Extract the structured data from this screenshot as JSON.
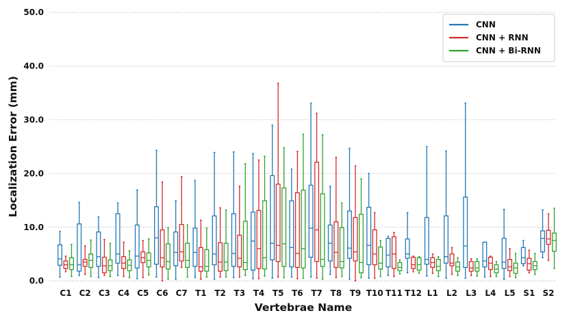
{
  "chart_data": {
    "type": "boxplot",
    "title": "",
    "xlabel": "Vertebrae Name",
    "ylabel": "Localization Error (mm)",
    "ylim": [
      0,
      50
    ],
    "yticks": [
      "0.0",
      "10.0",
      "20.0",
      "30.0",
      "40.0",
      "50.0"
    ],
    "grid": "horizontal dotted",
    "legend_position": "top-right",
    "categories": [
      "C1",
      "C2",
      "C3",
      "C4",
      "C5",
      "C6",
      "C7",
      "T1",
      "T2",
      "T3",
      "T4",
      "T5",
      "T6",
      "T7",
      "T8",
      "T9",
      "T10",
      "T11",
      "T12",
      "L1",
      "L2",
      "L3",
      "L4",
      "L5",
      "S1",
      "S2"
    ],
    "series": [
      {
        "name": "CNN",
        "color": "#1f77b4",
        "boxes": [
          {
            "min": 0.7,
            "q1": 2.9,
            "median": 4.1,
            "q3": 6.7,
            "max": 9.2
          },
          {
            "min": 1.0,
            "q1": 1.8,
            "median": 3.0,
            "q3": 10.6,
            "max": 14.6
          },
          {
            "min": 0.6,
            "q1": 2.7,
            "median": 4.5,
            "q3": 9.1,
            "max": 11.9
          },
          {
            "min": 1.0,
            "q1": 3.3,
            "median": 5.0,
            "q3": 12.5,
            "max": 14.5
          },
          {
            "min": 0.4,
            "q1": 2.4,
            "median": 4.6,
            "q3": 10.4,
            "max": 16.9
          },
          {
            "min": 0.7,
            "q1": 3.1,
            "median": 8.0,
            "q3": 13.8,
            "max": 24.3
          },
          {
            "min": 0.3,
            "q1": 2.8,
            "median": 5.3,
            "q3": 9.1,
            "max": 14.9
          },
          {
            "min": 0.6,
            "q1": 2.7,
            "median": 5.3,
            "q3": 9.8,
            "max": 18.7
          },
          {
            "min": 0.3,
            "q1": 3.0,
            "median": 5.0,
            "q3": 12.1,
            "max": 23.9
          },
          {
            "min": 0.6,
            "q1": 2.7,
            "median": 5.1,
            "q3": 12.5,
            "max": 24.0
          },
          {
            "min": 0.4,
            "q1": 2.0,
            "median": 7.4,
            "q3": 12.8,
            "max": 23.7
          },
          {
            "min": 0.5,
            "q1": 3.9,
            "median": 7.0,
            "q3": 19.6,
            "max": 29.0
          },
          {
            "min": 0.7,
            "q1": 2.6,
            "median": 6.2,
            "q3": 14.9,
            "max": 20.8
          },
          {
            "min": 0.7,
            "q1": 4.4,
            "median": 9.8,
            "q3": 17.8,
            "max": 33.1
          },
          {
            "min": 1.2,
            "q1": 3.7,
            "median": 7.0,
            "q3": 10.4,
            "max": 17.6
          },
          {
            "min": 0.3,
            "q1": 4.2,
            "median": 6.1,
            "q3": 13.0,
            "max": 24.7
          },
          {
            "min": 0.5,
            "q1": 3.0,
            "median": 6.6,
            "q3": 13.7,
            "max": 20.0
          },
          {
            "min": 1.0,
            "q1": 2.6,
            "median": 4.8,
            "q3": 7.9,
            "max": 8.3
          },
          {
            "min": 1.5,
            "q1": 4.2,
            "median": 5.0,
            "q3": 7.8,
            "max": 12.7
          },
          {
            "min": 0.9,
            "q1": 3.1,
            "median": 4.0,
            "q3": 11.8,
            "max": 25.0
          },
          {
            "min": 0.5,
            "q1": 3.3,
            "median": 4.5,
            "q3": 12.1,
            "max": 24.2
          },
          {
            "min": 0.5,
            "q1": 2.5,
            "median": 6.5,
            "q3": 15.6,
            "max": 33.1
          },
          {
            "min": 0.7,
            "q1": 2.6,
            "median": 3.7,
            "q3": 7.2,
            "max": 7.2
          },
          {
            "min": 0.3,
            "q1": 2.3,
            "median": 3.5,
            "q3": 7.9,
            "max": 13.3
          },
          {
            "min": 2.8,
            "q1": 3.2,
            "median": 4.3,
            "q3": 6.2,
            "max": 7.5
          },
          {
            "min": 4.3,
            "q1": 5.4,
            "median": 7.9,
            "q3": 9.3,
            "max": 13.2
          }
        ]
      },
      {
        "name": "CNN + RNN",
        "color": "#d62728",
        "boxes": [
          {
            "min": 1.7,
            "q1": 2.3,
            "median": 3.0,
            "q3": 3.7,
            "max": 4.6
          },
          {
            "min": 1.2,
            "q1": 2.7,
            "median": 3.5,
            "q3": 4.0,
            "max": 6.5
          },
          {
            "min": 1.0,
            "q1": 1.5,
            "median": 2.8,
            "q3": 4.4,
            "max": 7.7
          },
          {
            "min": 0.8,
            "q1": 2.3,
            "median": 3.3,
            "q3": 4.5,
            "max": 7.2
          },
          {
            "min": 0.6,
            "q1": 3.4,
            "median": 4.3,
            "q3": 5.4,
            "max": 7.5
          },
          {
            "min": 0.0,
            "q1": 2.6,
            "median": 4.3,
            "q3": 9.5,
            "max": 18.4
          },
          {
            "min": 2.5,
            "q1": 3.7,
            "median": 5.4,
            "q3": 10.5,
            "max": 19.4
          },
          {
            "min": 0.3,
            "q1": 1.8,
            "median": 2.6,
            "q3": 6.2,
            "max": 11.3
          },
          {
            "min": 0.7,
            "q1": 1.8,
            "median": 3.5,
            "q3": 7.1,
            "max": 13.6
          },
          {
            "min": 0.7,
            "q1": 2.6,
            "median": 4.2,
            "q3": 8.5,
            "max": 17.6
          },
          {
            "min": 0.4,
            "q1": 2.3,
            "median": 6.0,
            "q3": 13.1,
            "max": 22.5
          },
          {
            "min": 0.7,
            "q1": 3.6,
            "median": 6.6,
            "q3": 18.0,
            "max": 36.8
          },
          {
            "min": 0.4,
            "q1": 2.5,
            "median": 5.1,
            "q3": 16.4,
            "max": 24.1
          },
          {
            "min": 0.5,
            "q1": 3.6,
            "median": 9.5,
            "q3": 22.1,
            "max": 31.2
          },
          {
            "min": 0.6,
            "q1": 2.5,
            "median": 5.3,
            "q3": 11.0,
            "max": 23.0
          },
          {
            "min": 0.0,
            "q1": 3.7,
            "median": 5.4,
            "q3": 11.8,
            "max": 21.4
          },
          {
            "min": 0.5,
            "q1": 3.0,
            "median": 5.0,
            "q3": 9.5,
            "max": 12.7
          },
          {
            "min": 0.8,
            "q1": 2.3,
            "median": 5.0,
            "q3": 8.2,
            "max": 9.0
          },
          {
            "min": 1.7,
            "q1": 2.3,
            "median": 3.0,
            "q3": 4.4,
            "max": 4.6
          },
          {
            "min": 1.4,
            "q1": 2.5,
            "median": 3.4,
            "q3": 4.3,
            "max": 5.0
          },
          {
            "min": 1.2,
            "q1": 2.8,
            "median": 3.3,
            "q3": 5.0,
            "max": 6.2
          },
          {
            "min": 1.0,
            "q1": 1.8,
            "median": 2.4,
            "q3": 3.6,
            "max": 4.1
          },
          {
            "min": 0.8,
            "q1": 2.1,
            "median": 3.3,
            "q3": 4.4,
            "max": 4.6
          },
          {
            "min": 0.8,
            "q1": 1.9,
            "median": 2.6,
            "q3": 4.0,
            "max": 6.0
          },
          {
            "min": 1.5,
            "q1": 2.0,
            "median": 3.2,
            "q3": 4.2,
            "max": 5.7
          },
          {
            "min": 3.8,
            "q1": 6.8,
            "median": 7.8,
            "q3": 9.4,
            "max": 12.5
          }
        ]
      },
      {
        "name": "CNN + Bi-RNN",
        "color": "#2ca02c",
        "boxes": [
          {
            "min": 0.8,
            "q1": 2.1,
            "median": 3.0,
            "q3": 4.3,
            "max": 6.8
          },
          {
            "min": 0.8,
            "q1": 2.5,
            "median": 3.8,
            "q3": 5.0,
            "max": 7.6
          },
          {
            "min": 0.8,
            "q1": 1.9,
            "median": 2.8,
            "q3": 3.9,
            "max": 7.0
          },
          {
            "min": 0.6,
            "q1": 1.9,
            "median": 2.9,
            "q3": 3.9,
            "max": 5.6
          },
          {
            "min": 1.1,
            "q1": 2.6,
            "median": 3.8,
            "q3": 5.2,
            "max": 7.8
          },
          {
            "min": 0.3,
            "q1": 2.2,
            "median": 3.6,
            "q3": 6.9,
            "max": 9.9
          },
          {
            "min": 0.7,
            "q1": 2.5,
            "median": 3.8,
            "q3": 7.0,
            "max": 10.4
          },
          {
            "min": 0.7,
            "q1": 1.8,
            "median": 2.7,
            "q3": 5.8,
            "max": 9.8
          },
          {
            "min": 0.7,
            "q1": 1.9,
            "median": 3.5,
            "q3": 7.0,
            "max": 13.2
          },
          {
            "min": 1.0,
            "q1": 2.1,
            "median": 3.4,
            "q3": 11.1,
            "max": 21.8
          },
          {
            "min": 0.9,
            "q1": 2.2,
            "median": 4.3,
            "q3": 14.9,
            "max": 23.2
          },
          {
            "min": 0.6,
            "q1": 2.7,
            "median": 6.9,
            "q3": 17.3,
            "max": 24.8
          },
          {
            "min": 0.5,
            "q1": 2.4,
            "median": 6.0,
            "q3": 16.9,
            "max": 27.3
          },
          {
            "min": 0.3,
            "q1": 2.7,
            "median": 4.0,
            "q3": 16.2,
            "max": 27.2
          },
          {
            "min": 0.8,
            "q1": 2.4,
            "median": 3.6,
            "q3": 9.9,
            "max": 14.5
          },
          {
            "min": 0.6,
            "q1": 1.5,
            "median": 3.4,
            "q3": 12.4,
            "max": 19.0
          },
          {
            "min": 0.8,
            "q1": 2.2,
            "median": 3.3,
            "q3": 6.3,
            "max": 7.5
          },
          {
            "min": 1.3,
            "q1": 1.9,
            "median": 2.5,
            "q3": 3.4,
            "max": 3.9
          },
          {
            "min": 1.4,
            "q1": 2.0,
            "median": 3.0,
            "q3": 4.3,
            "max": 4.5
          },
          {
            "min": 0.8,
            "q1": 1.9,
            "median": 2.7,
            "q3": 4.0,
            "max": 4.5
          },
          {
            "min": 1.0,
            "q1": 1.8,
            "median": 2.6,
            "q3": 3.5,
            "max": 4.3
          },
          {
            "min": 0.9,
            "q1": 1.8,
            "median": 2.4,
            "q3": 3.6,
            "max": 4.1
          },
          {
            "min": 0.8,
            "q1": 1.5,
            "median": 2.2,
            "q3": 3.0,
            "max": 3.6
          },
          {
            "min": 0.6,
            "q1": 1.4,
            "median": 2.4,
            "q3": 3.3,
            "max": 5.1
          },
          {
            "min": 1.2,
            "q1": 2.1,
            "median": 2.8,
            "q3": 3.6,
            "max": 5.1
          },
          {
            "min": 2.3,
            "q1": 5.5,
            "median": 7.5,
            "q3": 8.9,
            "max": 13.5
          }
        ]
      }
    ]
  }
}
